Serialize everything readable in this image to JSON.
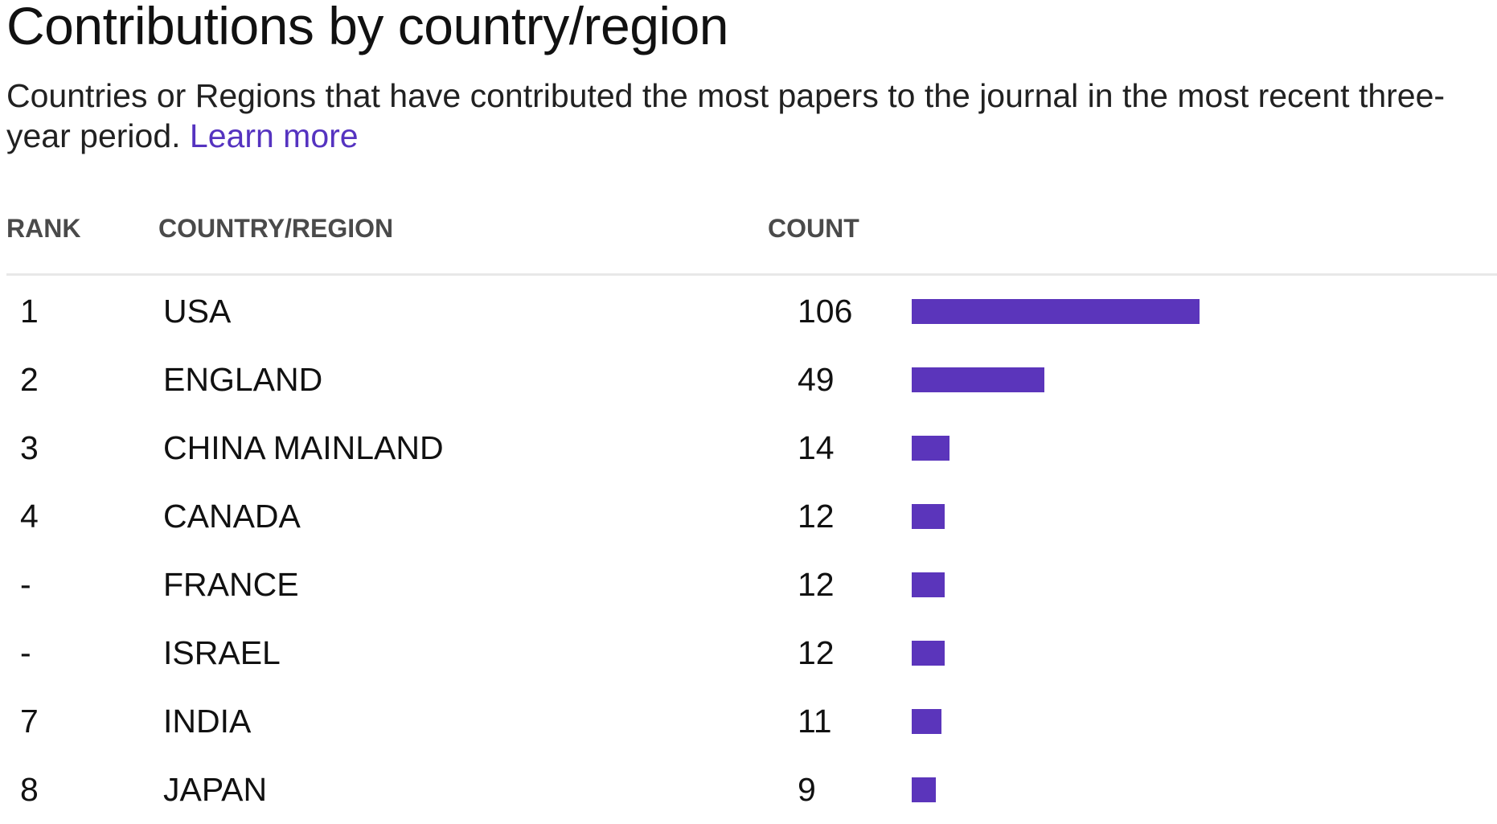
{
  "header": {
    "title": "Contributions by country/region",
    "description": "Countries or Regions that have contributed the most papers to the journal in the most recent three-year period.",
    "learn_more": "Learn more"
  },
  "table": {
    "columns": {
      "rank": "RANK",
      "country": "COUNTRY/REGION",
      "count": "COUNT"
    },
    "max_count": 106,
    "bar_color": "#5b35bb",
    "rows": [
      {
        "rank": "1",
        "country": "USA",
        "count": "106",
        "value": 106
      },
      {
        "rank": "2",
        "country": "ENGLAND",
        "count": "49",
        "value": 49
      },
      {
        "rank": "3",
        "country": "CHINA MAINLAND",
        "count": "14",
        "value": 14
      },
      {
        "rank": "4",
        "country": "CANADA",
        "count": "12",
        "value": 12
      },
      {
        "rank": "-",
        "country": "FRANCE",
        "count": "12",
        "value": 12
      },
      {
        "rank": "-",
        "country": "ISRAEL",
        "count": "12",
        "value": 12
      },
      {
        "rank": "7",
        "country": "INDIA",
        "count": "11",
        "value": 11
      },
      {
        "rank": "8",
        "country": "JAPAN",
        "count": "9",
        "value": 9
      }
    ]
  }
}
